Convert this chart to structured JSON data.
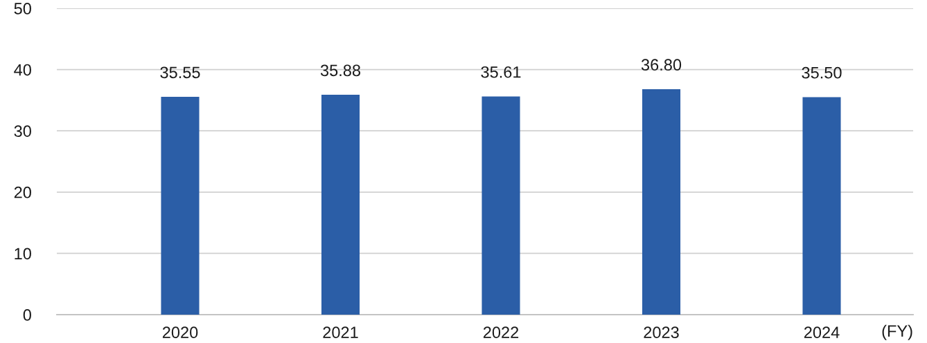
{
  "chart_data": {
    "type": "bar",
    "xlabel": "(FY)",
    "categories": [
      "2020",
      "2021",
      "2022",
      "2023",
      "2024"
    ],
    "values": [
      35.55,
      35.88,
      35.61,
      36.8,
      35.5
    ],
    "value_labels": [
      "35.55",
      "35.88",
      "35.61",
      "36.80",
      "35.50"
    ],
    "color": "#2b5ea7",
    "ylim": [
      0,
      50
    ],
    "yticks": [
      0,
      10,
      20,
      30,
      40,
      50
    ],
    "grid": "y"
  }
}
